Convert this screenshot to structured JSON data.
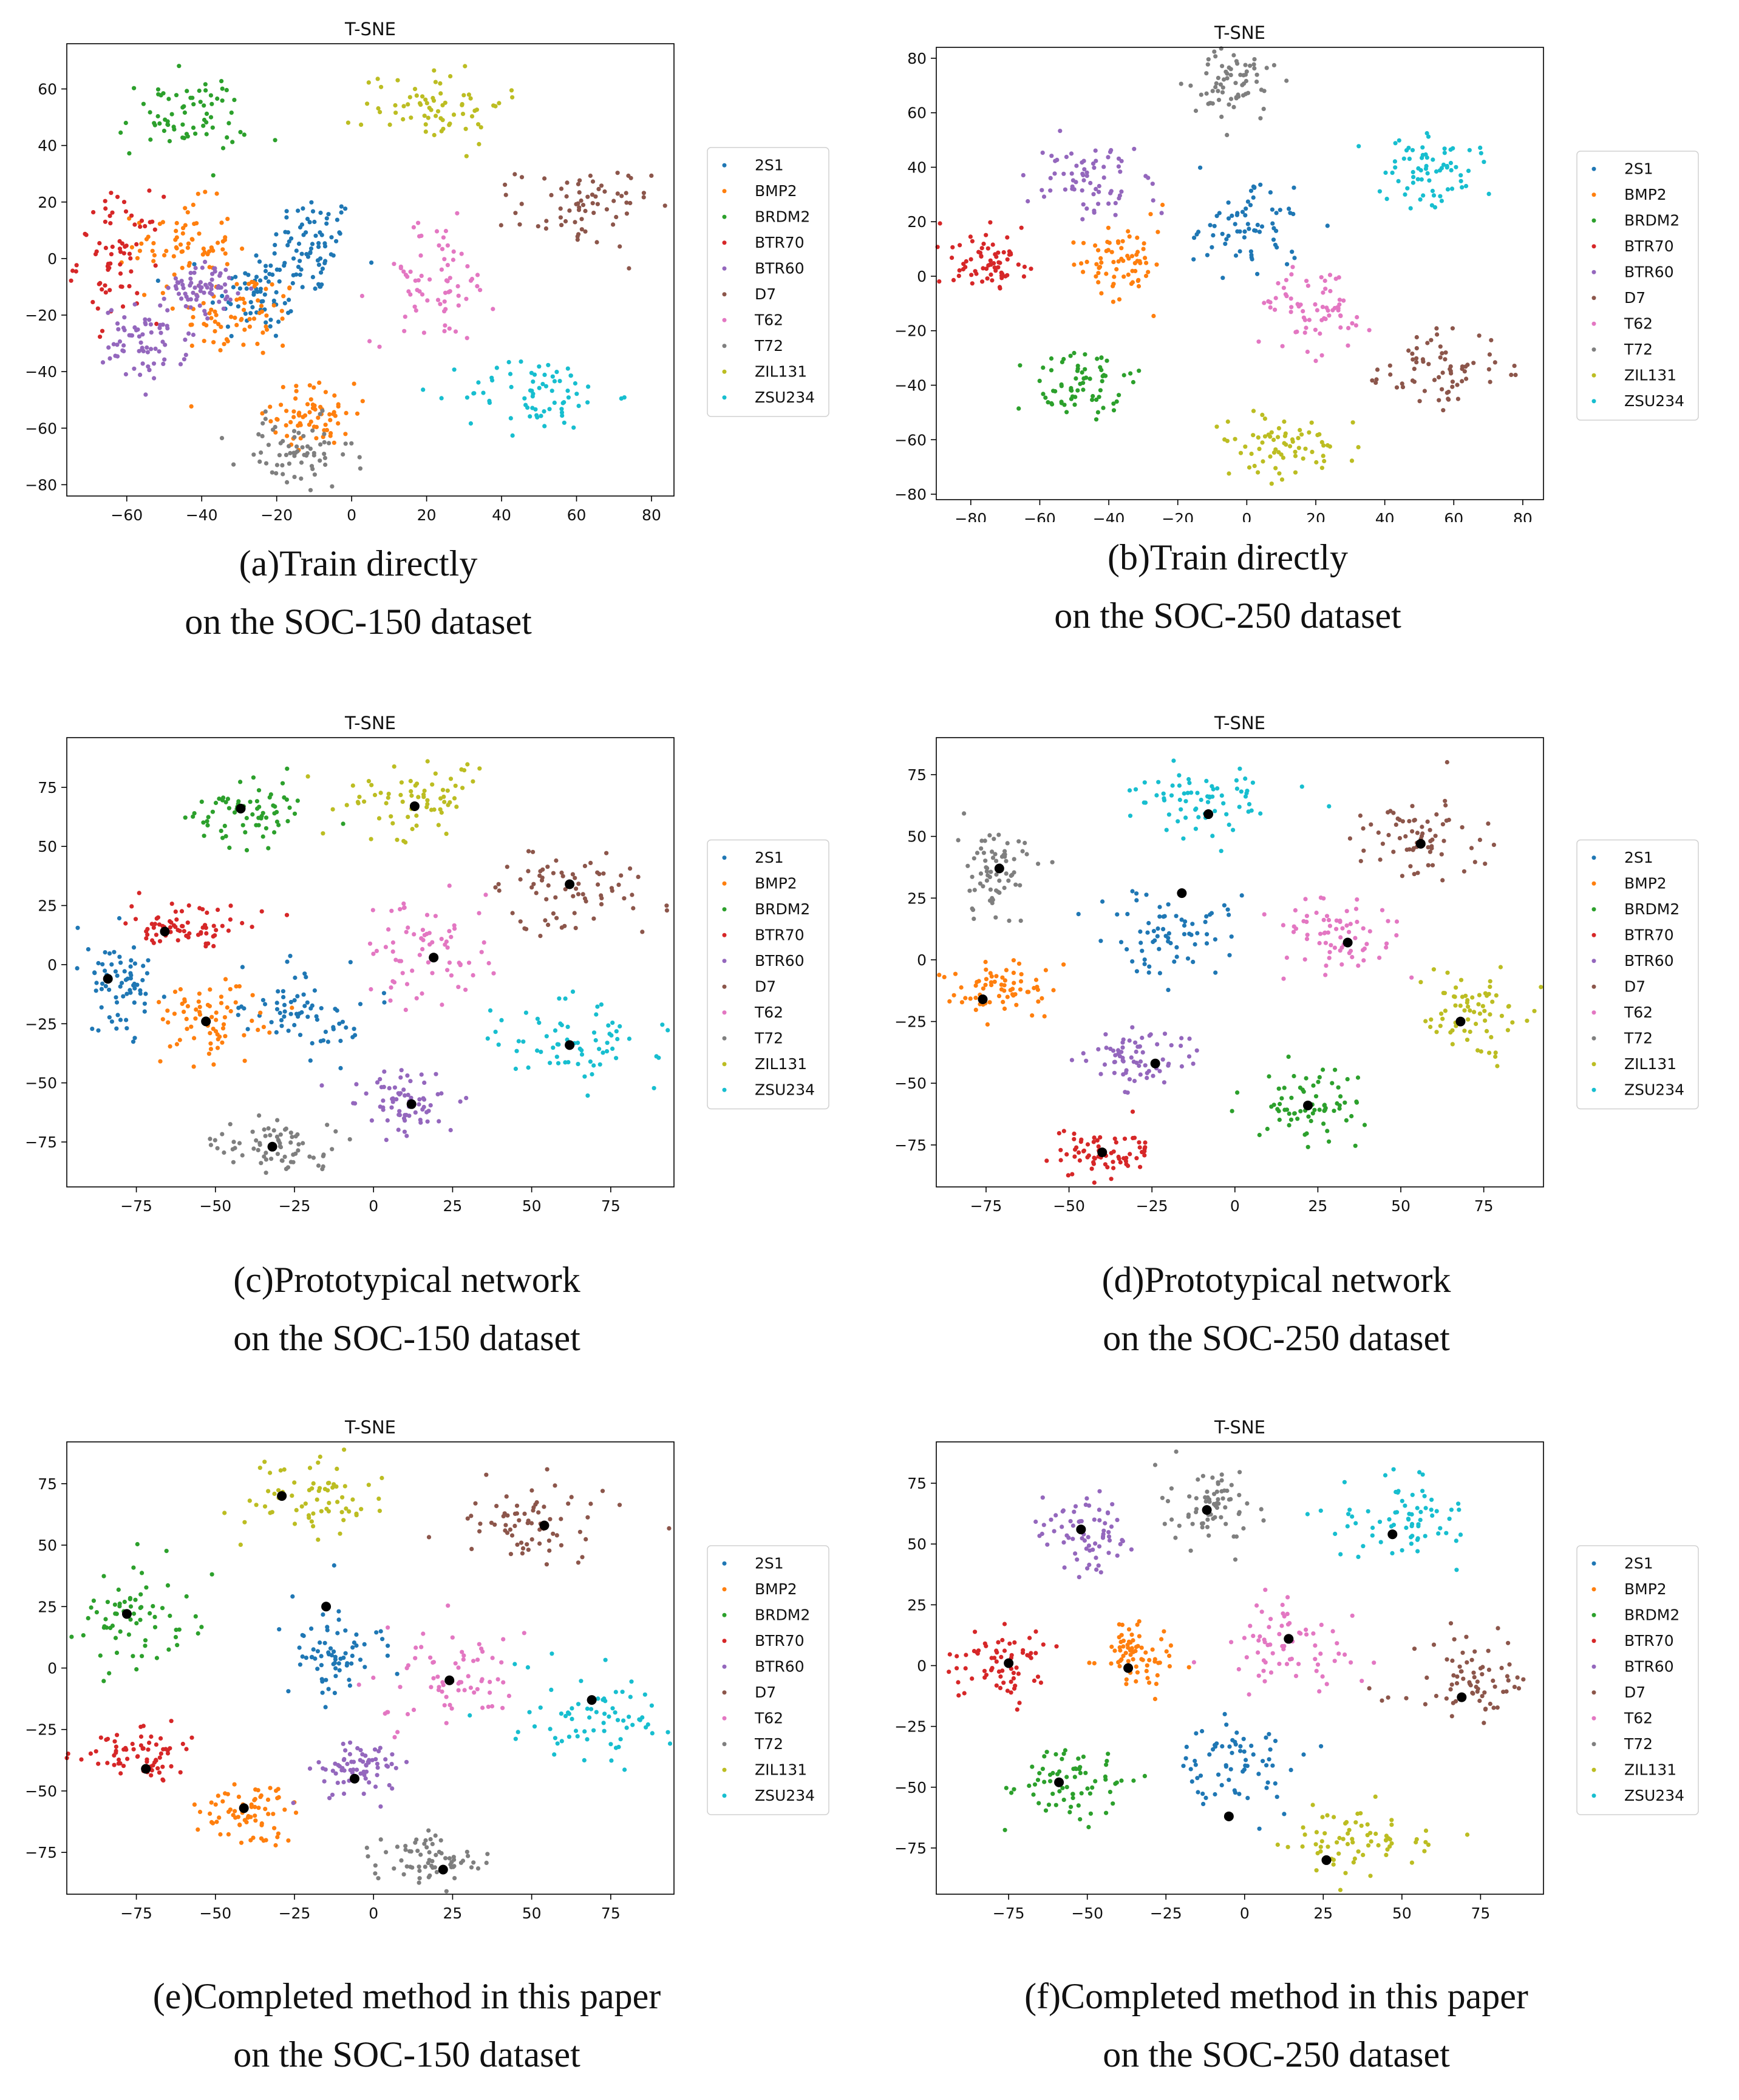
{
  "classes": [
    "2S1",
    "BMP2",
    "BRDM2",
    "BTR70",
    "BTR60",
    "D7",
    "T62",
    "T72",
    "ZIL131",
    "ZSU234"
  ],
  "colors": [
    "#1f77b4",
    "#ff7f0e",
    "#2ca02c",
    "#d62728",
    "#9467bd",
    "#8c564b",
    "#e377c2",
    "#7f7f7f",
    "#bcbd22",
    "#17becf"
  ],
  "prototype_color": "#000000",
  "chart_data": [
    {
      "id": "a",
      "type": "scatter",
      "title": "T-SNE",
      "xlim": [
        -76,
        86
      ],
      "ylim": [
        -84,
        76
      ],
      "xticks": [
        -60,
        -40,
        -20,
        0,
        20,
        40,
        60,
        80
      ],
      "yticks": [
        -80,
        -60,
        -40,
        -20,
        0,
        20,
        40,
        60
      ],
      "caption": [
        "(a)Train directly",
        "on the SOC-150 dataset"
      ],
      "series": [
        {
          "name": "2S1",
          "clusters": [
            [
              -10,
              5,
              10,
              16
            ],
            [
              -25,
              -12,
              12,
              16
            ]
          ]
        },
        {
          "name": "BMP2",
          "clusters": [
            [
              -30,
              -20,
              15,
              14
            ],
            [
              -45,
              5,
              12,
              14
            ],
            [
              -10,
              -55,
              10,
              10
            ]
          ]
        },
        {
          "name": "BRDM2",
          "clusters": [
            [
              -45,
              50,
              16,
              13
            ]
          ]
        },
        {
          "name": "BTR70",
          "clusters": [
            [
              -62,
              0,
              10,
              20
            ]
          ]
        },
        {
          "name": "BTR60",
          "clusters": [
            [
              -55,
              -30,
              10,
              12
            ],
            [
              -40,
              -10,
              8,
              8
            ]
          ]
        },
        {
          "name": "D7",
          "clusters": [
            [
              62,
              18,
              16,
              13
            ]
          ]
        },
        {
          "name": "T62",
          "clusters": [
            [
              22,
              -8,
              15,
              20
            ]
          ]
        },
        {
          "name": "T72",
          "clusters": [
            [
              -15,
              -70,
              14,
              12
            ]
          ]
        },
        {
          "name": "ZIL131",
          "clusters": [
            [
              22,
              55,
              17,
              13
            ]
          ]
        },
        {
          "name": "ZSU234",
          "clusters": [
            [
              50,
              -48,
              18,
              12
            ]
          ]
        }
      ],
      "prototypes": []
    },
    {
      "id": "b",
      "type": "scatter",
      "title": "T-SNE",
      "xlim": [
        -90,
        86
      ],
      "ylim": [
        -82,
        84
      ],
      "xticks": [
        -80,
        -60,
        -40,
        -20,
        0,
        20,
        40,
        60,
        80
      ],
      "yticks": [
        -80,
        -60,
        -40,
        -20,
        0,
        20,
        40,
        60,
        80
      ],
      "caption": [
        "(b)Train directly",
        "on the SOC-250 dataset"
      ],
      "series": [
        {
          "name": "2S1",
          "clusters": [
            [
              0,
              20,
              16,
              16
            ]
          ]
        },
        {
          "name": "BMP2",
          "clusters": [
            [
              -38,
              3,
              12,
              14
            ]
          ]
        },
        {
          "name": "BRDM2",
          "clusters": [
            [
              -48,
              -40,
              14,
              13
            ]
          ]
        },
        {
          "name": "BTR70",
          "clusters": [
            [
              -75,
              5,
              12,
              10
            ]
          ]
        },
        {
          "name": "BTR60",
          "clusters": [
            [
              -45,
              35,
              14,
              12
            ]
          ]
        },
        {
          "name": "D7",
          "clusters": [
            [
              58,
              -33,
              18,
              13
            ]
          ]
        },
        {
          "name": "T62",
          "clusters": [
            [
              20,
              -12,
              15,
              15
            ]
          ]
        },
        {
          "name": "T72",
          "clusters": [
            [
              -5,
              70,
              12,
              12
            ]
          ]
        },
        {
          "name": "ZIL131",
          "clusters": [
            [
              10,
              -62,
              18,
              11
            ]
          ]
        },
        {
          "name": "ZSU234",
          "clusters": [
            [
              52,
              38,
              13,
              13
            ]
          ]
        }
      ],
      "prototypes": []
    },
    {
      "id": "c",
      "type": "scatter",
      "title": "T-SNE",
      "xlim": [
        -97,
        95
      ],
      "ylim": [
        -94,
        96
      ],
      "xticks": [
        -75,
        -50,
        -25,
        0,
        25,
        50,
        75
      ],
      "yticks": [
        -75,
        -50,
        -25,
        0,
        25,
        50,
        75
      ],
      "caption": [
        "(c)Prototypical network",
        "on the SOC-150 dataset"
      ],
      "series": [
        {
          "name": "2S1",
          "clusters": [
            [
              -82,
              -8,
              10,
              20
            ],
            [
              -20,
              -20,
              20,
              15
            ]
          ]
        },
        {
          "name": "BMP2",
          "clusters": [
            [
              -52,
              -25,
              15,
              18
            ]
          ]
        },
        {
          "name": "BRDM2",
          "clusters": [
            [
              -40,
              65,
              20,
              16
            ]
          ]
        },
        {
          "name": "BTR70",
          "clusters": [
            [
              -60,
              15,
              18,
              10
            ]
          ]
        },
        {
          "name": "BTR60",
          "clusters": [
            [
              10,
              -58,
              14,
              12
            ]
          ]
        },
        {
          "name": "D7",
          "clusters": [
            [
              62,
              32,
              20,
              16
            ]
          ]
        },
        {
          "name": "T62",
          "clusters": [
            [
              18,
              5,
              20,
              20
            ]
          ]
        },
        {
          "name": "T72",
          "clusters": [
            [
              -30,
              -78,
              18,
              10
            ]
          ]
        },
        {
          "name": "ZIL131",
          "clusters": [
            [
              12,
              68,
              20,
              16
            ]
          ]
        },
        {
          "name": "ZSU234",
          "clusters": [
            [
              62,
              -33,
              22,
              16
            ]
          ]
        }
      ],
      "prototypes": [
        [
          -84,
          -6
        ],
        [
          -53,
          -24
        ],
        [
          -42,
          66
        ],
        [
          -66,
          14
        ],
        [
          12,
          -59
        ],
        [
          62,
          34
        ],
        [
          19,
          3
        ],
        [
          -32,
          -77
        ],
        [
          13,
          67
        ],
        [
          62,
          -34
        ]
      ]
    },
    {
      "id": "d",
      "type": "scatter",
      "title": "T-SNE",
      "xlim": [
        -90,
        93
      ],
      "ylim": [
        -92,
        90
      ],
      "xticks": [
        -75,
        -50,
        -25,
        0,
        25,
        50,
        75
      ],
      "yticks": [
        -75,
        -50,
        -25,
        0,
        25,
        50,
        75
      ],
      "caption": [
        "(d)Prototypical network",
        "on the SOC-250 dataset"
      ],
      "series": [
        {
          "name": "2S1",
          "clusters": [
            [
              -20,
              10,
              18,
              18
            ]
          ]
        },
        {
          "name": "BMP2",
          "clusters": [
            [
              -72,
              -12,
              14,
              12
            ]
          ]
        },
        {
          "name": "BRDM2",
          "clusters": [
            [
              22,
              -58,
              16,
              14
            ]
          ]
        },
        {
          "name": "BTR70",
          "clusters": [
            [
              -40,
              -78,
              14,
              10
            ]
          ]
        },
        {
          "name": "BTR60",
          "clusters": [
            [
              -30,
              -40,
              14,
              12
            ]
          ]
        },
        {
          "name": "D7",
          "clusters": [
            [
              55,
              50,
              17,
              14
            ]
          ]
        },
        {
          "name": "T62",
          "clusters": [
            [
              30,
              10,
              17,
              15
            ]
          ]
        },
        {
          "name": "T72",
          "clusters": [
            [
              -72,
              35,
              10,
              15
            ]
          ]
        },
        {
          "name": "ZIL131",
          "clusters": [
            [
              72,
              -20,
              17,
              15
            ]
          ]
        },
        {
          "name": "ZSU234",
          "clusters": [
            [
              -10,
              65,
              20,
              13
            ]
          ]
        }
      ],
      "prototypes": [
        [
          -16,
          27
        ],
        [
          -76,
          -16
        ],
        [
          22,
          -59
        ],
        [
          -40,
          -78
        ],
        [
          -24,
          -42
        ],
        [
          56,
          47
        ],
        [
          34,
          7
        ],
        [
          -71,
          37
        ],
        [
          68,
          -25
        ],
        [
          -8,
          59
        ]
      ]
    },
    {
      "id": "e",
      "type": "scatter",
      "title": "T-SNE",
      "xlim": [
        -97,
        95
      ],
      "ylim": [
        -92,
        92
      ],
      "xticks": [
        -75,
        -50,
        -25,
        0,
        25,
        50,
        75
      ],
      "yticks": [
        -75,
        -50,
        -25,
        0,
        25,
        50,
        75
      ],
      "caption": [
        "(e)Completed method in this paper",
        "on the SOC-150 dataset"
      ],
      "series": [
        {
          "name": "2S1",
          "clusters": [
            [
              -14,
              5,
              15,
              17
            ]
          ]
        },
        {
          "name": "BMP2",
          "clusters": [
            [
              -40,
              -60,
              14,
              12
            ]
          ]
        },
        {
          "name": "BRDM2",
          "clusters": [
            [
              -78,
              20,
              18,
              16
            ]
          ]
        },
        {
          "name": "BTR70",
          "clusters": [
            [
              -72,
              -35,
              16,
              10
            ]
          ]
        },
        {
          "name": "BTR60",
          "clusters": [
            [
              -5,
              -40,
              15,
              10
            ]
          ]
        },
        {
          "name": "D7",
          "clusters": [
            [
              52,
              60,
              20,
              15
            ]
          ]
        },
        {
          "name": "T62",
          "clusters": [
            [
              25,
              -5,
              20,
              18
            ]
          ]
        },
        {
          "name": "T72",
          "clusters": [
            [
              20,
              -78,
              16,
              10
            ]
          ]
        },
        {
          "name": "ZIL131",
          "clusters": [
            [
              -20,
              70,
              22,
              14
            ]
          ]
        },
        {
          "name": "ZSU234",
          "clusters": [
            [
              70,
              -20,
              22,
              18
            ]
          ]
        }
      ],
      "prototypes": [
        [
          -15,
          25
        ],
        [
          -41,
          -57
        ],
        [
          -78,
          22
        ],
        [
          -72,
          -41
        ],
        [
          -6,
          -45
        ],
        [
          54,
          58
        ],
        [
          24,
          -5
        ],
        [
          22,
          -82
        ],
        [
          -29,
          70
        ],
        [
          69,
          -13
        ]
      ]
    },
    {
      "id": "f",
      "type": "scatter",
      "title": "T-SNE",
      "xlim": [
        -98,
        95
      ],
      "ylim": [
        -94,
        92
      ],
      "xticks": [
        -75,
        -50,
        -25,
        0,
        25,
        50,
        75
      ],
      "yticks": [
        -75,
        -50,
        -25,
        0,
        25,
        50,
        75
      ],
      "caption": [
        "(f)Completed method in this paper",
        "on the SOC-250 dataset"
      ],
      "series": [
        {
          "name": "2S1",
          "clusters": [
            [
              -2,
              -42,
              16,
              16
            ]
          ]
        },
        {
          "name": "BMP2",
          "clusters": [
            [
              -35,
              5,
              12,
              16
            ]
          ]
        },
        {
          "name": "BRDM2",
          "clusters": [
            [
              -55,
              -48,
              18,
              14
            ]
          ]
        },
        {
          "name": "BTR70",
          "clusters": [
            [
              -78,
              0,
              16,
              12
            ]
          ]
        },
        {
          "name": "BTR60",
          "clusters": [
            [
              -50,
              55,
              12,
              14
            ]
          ]
        },
        {
          "name": "D7",
          "clusters": [
            [
              70,
              -5,
              20,
              16
            ]
          ]
        },
        {
          "name": "T62",
          "clusters": [
            [
              15,
              10,
              18,
              18
            ]
          ]
        },
        {
          "name": "T72",
          "clusters": [
            [
              -10,
              65,
              14,
              15
            ]
          ]
        },
        {
          "name": "ZIL131",
          "clusters": [
            [
              35,
              -72,
              24,
              12
            ]
          ]
        },
        {
          "name": "ZSU234",
          "clusters": [
            [
              50,
              60,
              22,
              15
            ]
          ]
        }
      ],
      "prototypes": [
        [
          -5,
          -62
        ],
        [
          -37,
          -1
        ],
        [
          -59,
          -48
        ],
        [
          -75,
          1
        ],
        [
          -52,
          56
        ],
        [
          69,
          -13
        ],
        [
          14,
          11
        ],
        [
          -12,
          64
        ],
        [
          26,
          -80
        ],
        [
          47,
          54
        ]
      ]
    }
  ]
}
